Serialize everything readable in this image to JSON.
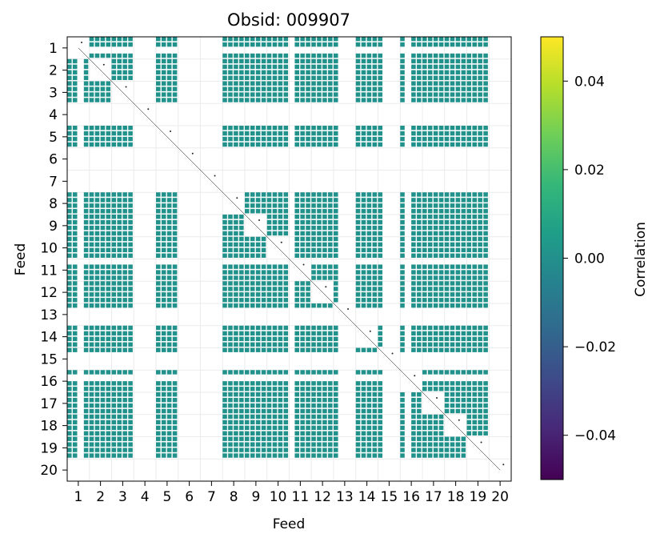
{
  "chart_data": {
    "type": "heatmap",
    "title": "Obsid: 009907",
    "xlabel": "Feed",
    "ylabel": "Feed",
    "x_categories": [
      "1",
      "2",
      "3",
      "4",
      "5",
      "6",
      "7",
      "8",
      "9",
      "10",
      "11",
      "12",
      "13",
      "14",
      "15",
      "16",
      "17",
      "18",
      "19",
      "20"
    ],
    "y_categories": [
      "1",
      "2",
      "3",
      "4",
      "5",
      "6",
      "7",
      "8",
      "9",
      "10",
      "11",
      "12",
      "13",
      "14",
      "15",
      "16",
      "17",
      "18",
      "19",
      "20"
    ],
    "subcells_per_feed": 4,
    "dead_feeds": [
      4,
      6,
      7,
      20
    ],
    "mostly_masked_feeds": [
      13,
      15
    ],
    "masked_subcell_indices": [
      2,
      27,
      40,
      61
    ],
    "fill_value": 0.0,
    "grid": true,
    "colormap": "viridis",
    "colorbar": {
      "label": "Correlation",
      "range": [
        -0.05,
        0.05
      ],
      "ticks": [
        -0.04,
        -0.02,
        0.0,
        0.02,
        0.04
      ],
      "tick_labels": [
        "−0.04",
        "−0.02",
        "0.00",
        "0.02",
        "0.04"
      ],
      "stops": [
        "#440154",
        "#482777",
        "#3e4989",
        "#31688e",
        "#26828e",
        "#1f9e89",
        "#35b779",
        "#6ece58",
        "#b5de2b",
        "#fde725"
      ]
    },
    "colors": {
      "cell": "#21918c",
      "diagonal": "#000000",
      "grid": "#ebebeb"
    }
  }
}
